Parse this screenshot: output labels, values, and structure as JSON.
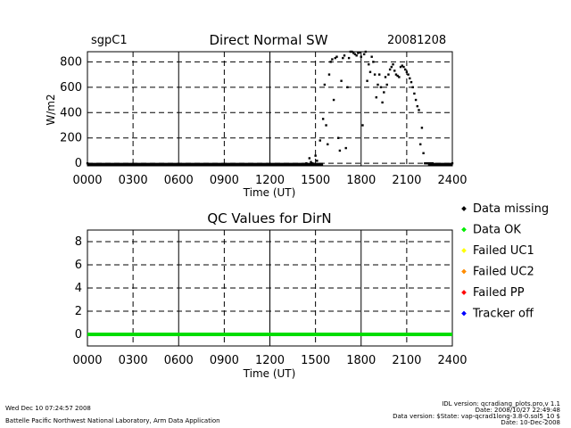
{
  "header": {
    "site": "sgpC1",
    "title": "Direct Normal SW",
    "date": "20081208"
  },
  "chart_data": [
    {
      "type": "scatter",
      "title": "Direct Normal SW",
      "xlabel": "Time (UT)",
      "ylabel": "W/m2",
      "xlim": [
        0,
        24
      ],
      "ylim": [
        -20,
        880
      ],
      "x_ticks": [
        0,
        3,
        6,
        9,
        12,
        15,
        18,
        21,
        24
      ],
      "x_tick_labels": [
        "0000",
        "0300",
        "0600",
        "0900",
        "1200",
        "1500",
        "1800",
        "2100",
        "2400"
      ],
      "y_ticks": [
        0,
        200,
        400,
        600,
        800
      ],
      "y_tick_labels": [
        "0",
        "200",
        "400",
        "600",
        "800"
      ],
      "grid": "dashed",
      "series": [
        {
          "color": "#000000",
          "x": [
            0,
            14.4,
            14.6,
            14.7,
            14.8,
            15.0,
            15.1,
            15.3,
            15.5,
            15.6,
            15.7,
            15.8,
            15.9,
            16.0,
            16.1,
            16.2,
            16.3,
            16.4,
            16.5,
            16.6,
            16.7,
            16.8,
            16.9,
            17.0,
            17.1,
            17.2,
            17.3,
            17.4,
            17.5,
            17.6,
            17.7,
            17.8,
            17.9,
            18.0,
            18.1,
            18.2,
            18.3,
            18.4,
            18.5,
            18.6,
            18.7,
            18.8,
            18.9,
            19.0,
            19.1,
            19.2,
            19.3,
            19.4,
            19.5,
            19.6,
            19.7,
            19.8,
            19.9,
            20.0,
            20.1,
            20.2,
            20.3,
            20.4,
            20.5,
            20.6,
            20.7,
            20.8,
            20.9,
            21.0,
            21.1,
            21.2,
            21.3,
            21.4,
            21.5,
            21.6,
            21.7,
            21.8,
            21.9,
            22.0,
            22.1,
            22.2,
            22.3,
            22.4,
            22.5,
            22.6,
            22.7,
            24.0
          ],
          "y": [
            0,
            0,
            40,
            10,
            0,
            60,
            20,
            180,
            350,
            620,
            300,
            150,
            700,
            800,
            820,
            500,
            830,
            840,
            200,
            100,
            650,
            830,
            850,
            120,
            600,
            830,
            880,
            880,
            870,
            860,
            850,
            870,
            875,
            840,
            300,
            860,
            880,
            650,
            780,
            720,
            840,
            800,
            700,
            520,
            620,
            700,
            600,
            480,
            560,
            680,
            620,
            700,
            740,
            760,
            780,
            730,
            700,
            690,
            680,
            760,
            770,
            760,
            740,
            720,
            700,
            670,
            640,
            600,
            550,
            500,
            450,
            420,
            150,
            280,
            80,
            0,
            0,
            0,
            0,
            0,
            0,
            0
          ]
        }
      ]
    },
    {
      "type": "line",
      "title": "QC Values for DirN",
      "xlabel": "Time (UT)",
      "ylabel": "",
      "xlim": [
        0,
        24
      ],
      "ylim": [
        -1,
        9
      ],
      "x_ticks": [
        0,
        3,
        6,
        9,
        12,
        15,
        18,
        21,
        24
      ],
      "x_tick_labels": [
        "0000",
        "0300",
        "0600",
        "0900",
        "1200",
        "1500",
        "1800",
        "2100",
        "2400"
      ],
      "y_ticks": [
        0,
        2,
        4,
        6,
        8
      ],
      "y_tick_labels": [
        "0",
        "2",
        "4",
        "6",
        "8"
      ],
      "grid": "dashed",
      "series": [
        {
          "name": "Data OK",
          "color": "#00dd00",
          "x": [
            0,
            24
          ],
          "y": [
            0,
            0
          ]
        }
      ],
      "legend": {
        "placement": "right",
        "items": [
          {
            "label": "Data missing",
            "color": "#000000"
          },
          {
            "label": "Data OK",
            "color": "#00ee00"
          },
          {
            "label": "Failed UC1",
            "color": "#ffff00"
          },
          {
            "label": "Failed UC2",
            "color": "#ff8c00"
          },
          {
            "label": "Failed PP",
            "color": "#ff0000"
          },
          {
            "label": "Tracker off",
            "color": "#0000ff"
          }
        ]
      }
    }
  ],
  "footer": {
    "left_line1": "Wed Dec 10 07:24:57 2008",
    "left_line2": "Battelle Pacific Northwest National Laboratory, Arm Data Application",
    "right_line1": "IDL version: qcradiang_plots.pro,v 1.1",
    "right_line2": "Date: 2008/10/27 22:49:48",
    "right_line3": "Data version: $State: vap-qcrad1long-3.8-0.sol5_10 $",
    "right_line4": "Date: 10-Dec-2008"
  }
}
